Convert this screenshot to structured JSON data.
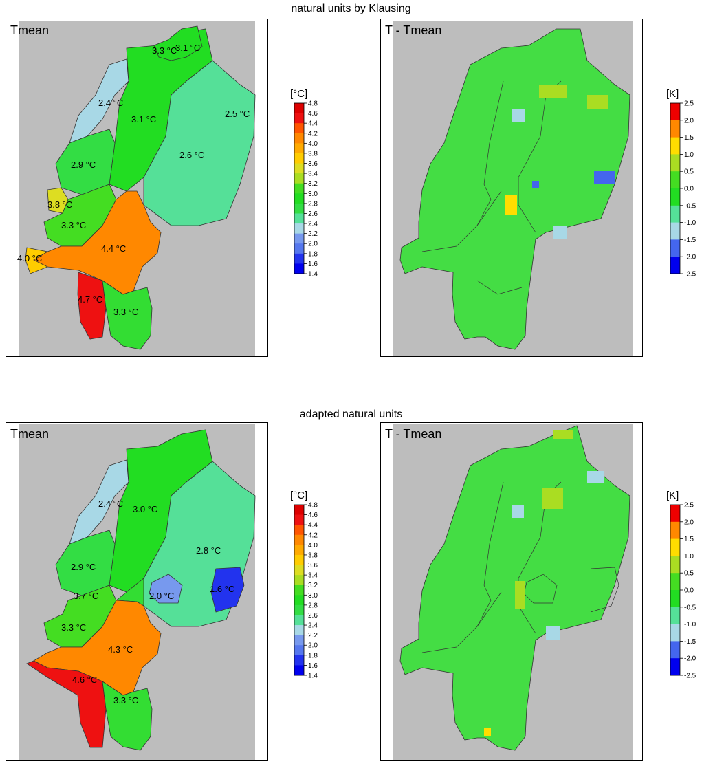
{
  "sections": [
    {
      "title": "natural units by Klausing",
      "left_panel": {
        "label": "Tmean",
        "legend": {
          "unit": "[°C]",
          "ticks": [
            "4.8",
            "4.6",
            "4.4",
            "4.2",
            "4.0",
            "3.8",
            "3.6",
            "3.4",
            "3.2",
            "3.0",
            "2.8",
            "2.6",
            "2.4",
            "2.2",
            "2.0",
            "1.8",
            "1.6",
            "1.4"
          ]
        },
        "regions": [
          {
            "label": "3.3 °C",
            "value": 3.3,
            "color": "#22dd22"
          },
          {
            "label": "3.1 °C",
            "value": 3.1,
            "color": "#22dd22"
          },
          {
            "label": "2.4 °C",
            "value": 2.4,
            "color": "#a8d8e6"
          },
          {
            "label": "3.1 °C",
            "value": 3.1,
            "color": "#22dd22"
          },
          {
            "label": "2.5 °C",
            "value": 2.5,
            "color": "#55e098"
          },
          {
            "label": "2.6 °C",
            "value": 2.6,
            "color": "#55e098"
          },
          {
            "label": "2.9 °C",
            "value": 2.9,
            "color": "#33dd44"
          },
          {
            "label": "3.8 °C",
            "value": 3.8,
            "color": "#dddd22"
          },
          {
            "label": "3.3 °C",
            "value": 3.3,
            "color": "#44dd22"
          },
          {
            "label": "4.4 °C",
            "value": 4.4,
            "color": "#ff8800"
          },
          {
            "label": "4.0 °C",
            "value": 4.0,
            "color": "#ffcc00"
          },
          {
            "label": "4.7 °C",
            "value": 4.7,
            "color": "#ee1111"
          },
          {
            "label": "3.3 °C",
            "value": 3.3,
            "color": "#33dd33"
          }
        ]
      },
      "right_panel": {
        "label": "T - Tmean",
        "legend": {
          "unit": "[K]",
          "ticks": [
            "2.5",
            "2.0",
            "1.5",
            "1.0",
            "0.5",
            "0.0",
            "-0.5",
            "-1.0",
            "-1.5",
            "-2.0",
            "-2.5"
          ]
        }
      }
    },
    {
      "title": "adapted natural units",
      "left_panel": {
        "label": "Tmean",
        "legend": {
          "unit": "[°C]",
          "ticks": [
            "4.8",
            "4.6",
            "4.4",
            "4.2",
            "4.0",
            "3.8",
            "3.6",
            "3.4",
            "3.2",
            "3.0",
            "2.8",
            "2.6",
            "2.4",
            "2.2",
            "2.0",
            "1.8",
            "1.6",
            "1.4"
          ]
        },
        "regions": [
          {
            "label": "2.4 °C",
            "value": 2.4,
            "color": "#a8d8e6"
          },
          {
            "label": "3.0 °C",
            "value": 3.0,
            "color": "#22dd22"
          },
          {
            "label": "2.8 °C",
            "value": 2.8,
            "color": "#55e098"
          },
          {
            "label": "2.9 °C",
            "value": 2.9,
            "color": "#33dd44"
          },
          {
            "label": "3.7 °C",
            "value": 3.7,
            "color": "#44dd22"
          },
          {
            "label": "2.0 °C",
            "value": 2.0,
            "color": "#7799ee"
          },
          {
            "label": "1.6 °C",
            "value": 1.6,
            "color": "#2233ee"
          },
          {
            "label": "3.3 °C",
            "value": 3.3,
            "color": "#33dd33"
          },
          {
            "label": "4.3 °C",
            "value": 4.3,
            "color": "#ff8800"
          },
          {
            "label": "4.6 °C",
            "value": 4.6,
            "color": "#ee1111"
          },
          {
            "label": "3.3 °C",
            "value": 3.3,
            "color": "#33dd33"
          }
        ]
      },
      "right_panel": {
        "label": "T - Tmean",
        "legend": {
          "unit": "[K]",
          "ticks": [
            "2.5",
            "2.0",
            "1.5",
            "1.0",
            "0.5",
            "0.0",
            "-0.5",
            "-1.0",
            "-1.5",
            "-2.0",
            "-2.5"
          ]
        }
      }
    }
  ],
  "colors": {
    "background_grey": "#bdbdbd",
    "anomaly_base": "#44dd44",
    "outline": "#333333"
  },
  "scales": {
    "temperature": [
      "#0000ee",
      "#2233ee",
      "#5577ee",
      "#7799ee",
      "#a8d8e6",
      "#55e098",
      "#33dd44",
      "#22dd22",
      "#44dd22",
      "#aadd22",
      "#dddd22",
      "#ffcc00",
      "#ffaa00",
      "#ff8800",
      "#ff5500",
      "#ee1111",
      "#dd0000"
    ],
    "anomaly": [
      "#0000ee",
      "#4466ee",
      "#a8d8e6",
      "#55e098",
      "#22dd22",
      "#44dd22",
      "#aadd22",
      "#ffdd00",
      "#ff8800",
      "#ee0000"
    ]
  }
}
